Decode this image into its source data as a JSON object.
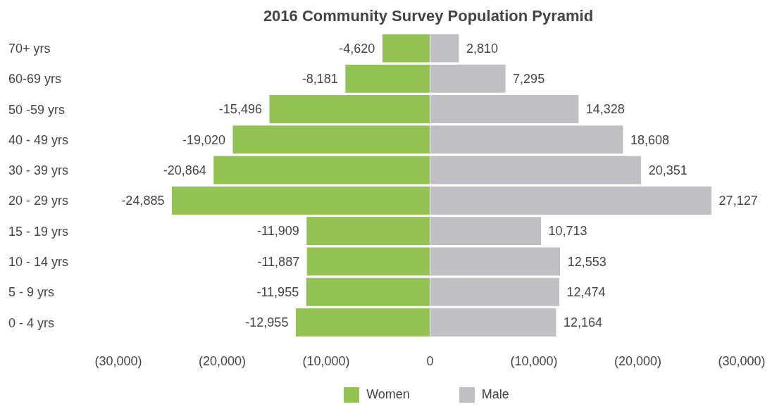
{
  "chart_data": {
    "type": "bar",
    "title": "2016 Community Survey Population Pyramid",
    "orientation": "horizontal",
    "stacked": true,
    "categories": [
      "70+ yrs",
      "60-69 yrs",
      "50 -59 yrs",
      "40 - 49 yrs",
      "30 - 39 yrs",
      "20 - 29 yrs",
      "15 - 19 yrs",
      "10 - 14 yrs",
      "5 - 9 yrs",
      "0 - 4 yrs"
    ],
    "series": [
      {
        "name": "Women",
        "color": "#92c353",
        "values": [
          -4620,
          -8181,
          -15496,
          -19020,
          -20864,
          -24885,
          -11909,
          -11887,
          -11955,
          -12955
        ],
        "value_labels": [
          "-4,620",
          "-8,181",
          "-15,496",
          "-19,020",
          "-20,864",
          "-24,885",
          "-11,909",
          "-11,887",
          "-11,955",
          "-12,955"
        ]
      },
      {
        "name": "Male",
        "color": "#c0bfc4",
        "values": [
          2810,
          7295,
          14328,
          18608,
          20351,
          27127,
          10713,
          12553,
          12474,
          12164
        ],
        "value_labels": [
          "2,810",
          "7,295",
          "14,328",
          "18,608",
          "20,351",
          "27,127",
          "10,713",
          "12,553",
          "12,474",
          "12,164"
        ]
      }
    ],
    "xlim": [
      -30000,
      30000
    ],
    "xticks": [
      {
        "value": -30000,
        "label": "(30,000)"
      },
      {
        "value": -20000,
        "label": "(20,000)"
      },
      {
        "value": -10000,
        "label": "(10,000)"
      },
      0,
      {
        "value": 10000,
        "label": "(10,000)"
      },
      {
        "value": 20000,
        "label": "(20,000)"
      },
      {
        "value": 30000,
        "label": "(30,000)"
      }
    ],
    "grid": false,
    "legend": "bottom"
  }
}
